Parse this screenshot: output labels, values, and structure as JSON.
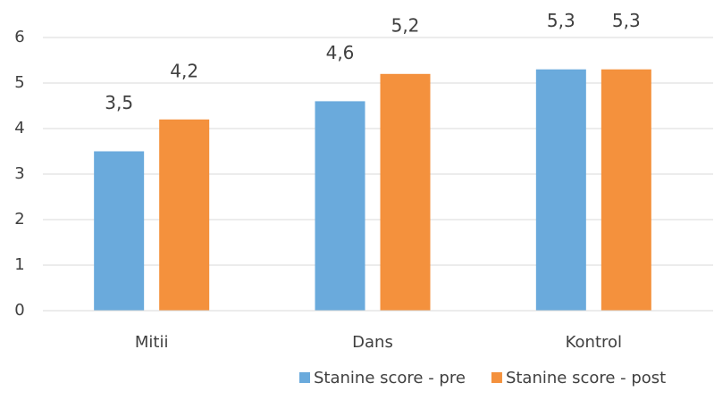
{
  "chart_data": {
    "type": "bar",
    "categories": [
      "Mitii",
      "Dans",
      "Kontrol"
    ],
    "series": [
      {
        "name": "Stanine score - pre",
        "color": "#6aaadc",
        "values": [
          3.5,
          4.6,
          5.3
        ],
        "value_labels": [
          "3,5",
          "4,6",
          "5,3"
        ]
      },
      {
        "name": "Stanine score - post",
        "color": "#f4913d",
        "values": [
          4.2,
          5.2,
          5.3
        ],
        "value_labels": [
          "4,2",
          "5,2",
          "5,3"
        ]
      }
    ],
    "ylim": [
      0,
      6
    ],
    "yticks": [
      0,
      1,
      2,
      3,
      4,
      5,
      6
    ],
    "grid": true,
    "legend": "bottom"
  }
}
